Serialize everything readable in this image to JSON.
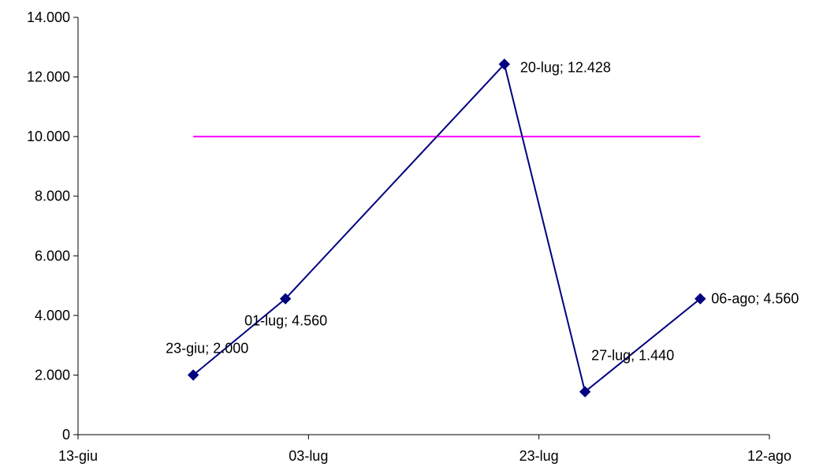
{
  "chart_data": {
    "type": "line",
    "title": "",
    "xlabel": "",
    "ylabel": "",
    "grid": false,
    "legend": "none",
    "x_axis": {
      "type": "date",
      "range": [
        "2000-06-13",
        "2000-08-12"
      ],
      "ticks": [
        {
          "date": "2000-06-13",
          "label": "13-giu"
        },
        {
          "date": "2000-07-03",
          "label": "03-lug"
        },
        {
          "date": "2000-07-23",
          "label": "23-lug"
        },
        {
          "date": "2000-08-12",
          "label": "12-ago"
        }
      ]
    },
    "y_axis": {
      "range": [
        0,
        14000
      ],
      "ticks": [
        {
          "value": 0,
          "label": "0"
        },
        {
          "value": 2000,
          "label": "2.000"
        },
        {
          "value": 4000,
          "label": "4.000"
        },
        {
          "value": 6000,
          "label": "6.000"
        },
        {
          "value": 8000,
          "label": "8.000"
        },
        {
          "value": 10000,
          "label": "10.000"
        },
        {
          "value": 12000,
          "label": "12.000"
        },
        {
          "value": 14000,
          "label": "14.000"
        }
      ]
    },
    "series": [
      {
        "color": "#000080",
        "marker": "diamond",
        "points": [
          {
            "x": "2000-06-23",
            "y": 2000,
            "label": "23-giu; 2.000"
          },
          {
            "x": "2000-07-01",
            "y": 4560,
            "label": "01-lug; 4.560"
          },
          {
            "x": "2000-07-20",
            "y": 12428,
            "label": "20-lug; 12.428"
          },
          {
            "x": "2000-07-27",
            "y": 1440,
            "label": "27-lug; 1.440"
          },
          {
            "x": "2000-08-06",
            "y": 4560,
            "label": "06-ago; 4.560"
          }
        ]
      },
      {
        "color": "#ff00ff",
        "marker": "none",
        "points": [
          {
            "x": "2000-06-23",
            "y": 10000
          },
          {
            "x": "2000-08-06",
            "y": 10000
          }
        ]
      }
    ]
  }
}
